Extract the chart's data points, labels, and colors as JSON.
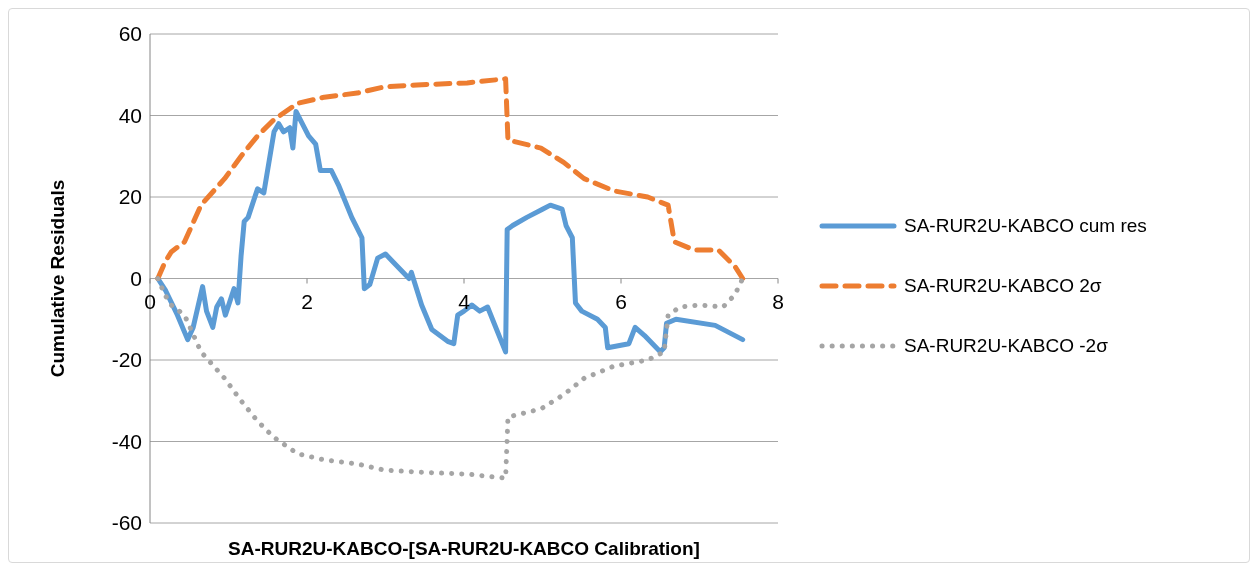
{
  "chart_data": {
    "type": "line",
    "xlabel": "SA-RUR2U-KABCO-[SA-RUR2U-KABCO Calibration]",
    "ylabel": "Cumulative Residuals",
    "xlim": [
      0,
      8
    ],
    "xticks": [
      0,
      2,
      4,
      6,
      8
    ],
    "ylim": [
      -60,
      60
    ],
    "yticks": [
      -60,
      -40,
      -20,
      0,
      20,
      40,
      60
    ],
    "grid": "y",
    "legend": "right",
    "marker": "none",
    "series": [
      {
        "name": "SA-RUR2U-KABCO cum res",
        "color": "#5b9bd5",
        "line_style": "solid",
        "x": [
          0.1,
          0.2,
          0.35,
          0.48,
          0.55,
          0.67,
          0.72,
          0.8,
          0.85,
          0.91,
          0.96,
          1.07,
          1.12,
          1.16,
          1.2,
          1.25,
          1.37,
          1.45,
          1.58,
          1.64,
          1.7,
          1.78,
          1.82,
          1.86,
          1.94,
          2.02,
          2.11,
          2.17,
          2.31,
          2.4,
          2.57,
          2.7,
          2.73,
          2.8,
          2.9,
          3.0,
          3.1,
          3.3,
          3.33,
          3.46,
          3.59,
          3.8,
          3.87,
          3.92,
          4.0,
          4.1,
          4.2,
          4.3,
          4.53,
          4.55,
          4.62,
          4.8,
          5.0,
          5.1,
          5.25,
          5.3,
          5.38,
          5.42,
          5.5,
          5.7,
          5.8,
          5.83,
          6.1,
          6.18,
          6.3,
          6.5,
          6.55,
          6.58,
          6.7,
          7.2,
          7.55
        ],
        "values": [
          0,
          -3,
          -9,
          -15,
          -12,
          -2,
          -8,
          -12,
          -7,
          -5,
          -9,
          -2.5,
          -6,
          5.5,
          14,
          15,
          22,
          21,
          36,
          38,
          36,
          37,
          32,
          41,
          38,
          35,
          33,
          26.5,
          26.5,
          23,
          15,
          10,
          -2.5,
          -1.5,
          5,
          6,
          4,
          0,
          1.5,
          -6.5,
          -12.5,
          -15.5,
          -16,
          -9,
          -8,
          -6.5,
          -8,
          -7,
          -18,
          12,
          13,
          15,
          17,
          18,
          17,
          13,
          10,
          -6,
          -8,
          -10,
          -12,
          -17,
          -16,
          -12,
          -14,
          -18,
          -17,
          -11,
          -10,
          -11.5,
          -15
        ]
      },
      {
        "name": "SA-RUR2U-KABCO 2σ",
        "color": "#ed7d31",
        "line_style": "dashed",
        "x": [
          0.1,
          0.19,
          0.27,
          0.44,
          0.65,
          0.95,
          1.16,
          1.37,
          1.58,
          1.88,
          2.22,
          2.64,
          2.98,
          3.4,
          4.04,
          4.53,
          4.56,
          4.98,
          5.27,
          5.53,
          5.91,
          6.34,
          6.6,
          6.68,
          6.93,
          7.24,
          7.45,
          7.55
        ],
        "values": [
          0,
          4,
          6.5,
          9,
          18,
          24.5,
          30,
          35,
          39,
          43,
          44.5,
          45.5,
          47,
          47.5,
          48,
          49,
          34,
          32,
          28.5,
          24.5,
          21.5,
          20,
          18,
          9,
          7,
          7,
          3,
          0
        ]
      },
      {
        "name": "SA-RUR2U-KABCO -2σ",
        "color": "#a5a5a5",
        "line_style": "dotted",
        "x": [
          0.1,
          0.19,
          0.27,
          0.44,
          0.65,
          0.95,
          1.16,
          1.37,
          1.58,
          1.88,
          2.22,
          2.64,
          2.98,
          3.4,
          4.04,
          4.53,
          4.56,
          4.98,
          5.27,
          5.53,
          5.91,
          6.34,
          6.55,
          6.6,
          6.75,
          7.0,
          7.3,
          7.45,
          7.55
        ],
        "values": [
          0,
          -4,
          -6.5,
          -9,
          -18,
          -24.5,
          -30,
          -35,
          -39,
          -43,
          -44.5,
          -45.5,
          -47,
          -47.5,
          -48,
          -49,
          -34,
          -32,
          -28.5,
          -24.5,
          -21.5,
          -20,
          -18,
          -9,
          -7,
          -6.5,
          -7,
          -4,
          0
        ]
      }
    ]
  }
}
